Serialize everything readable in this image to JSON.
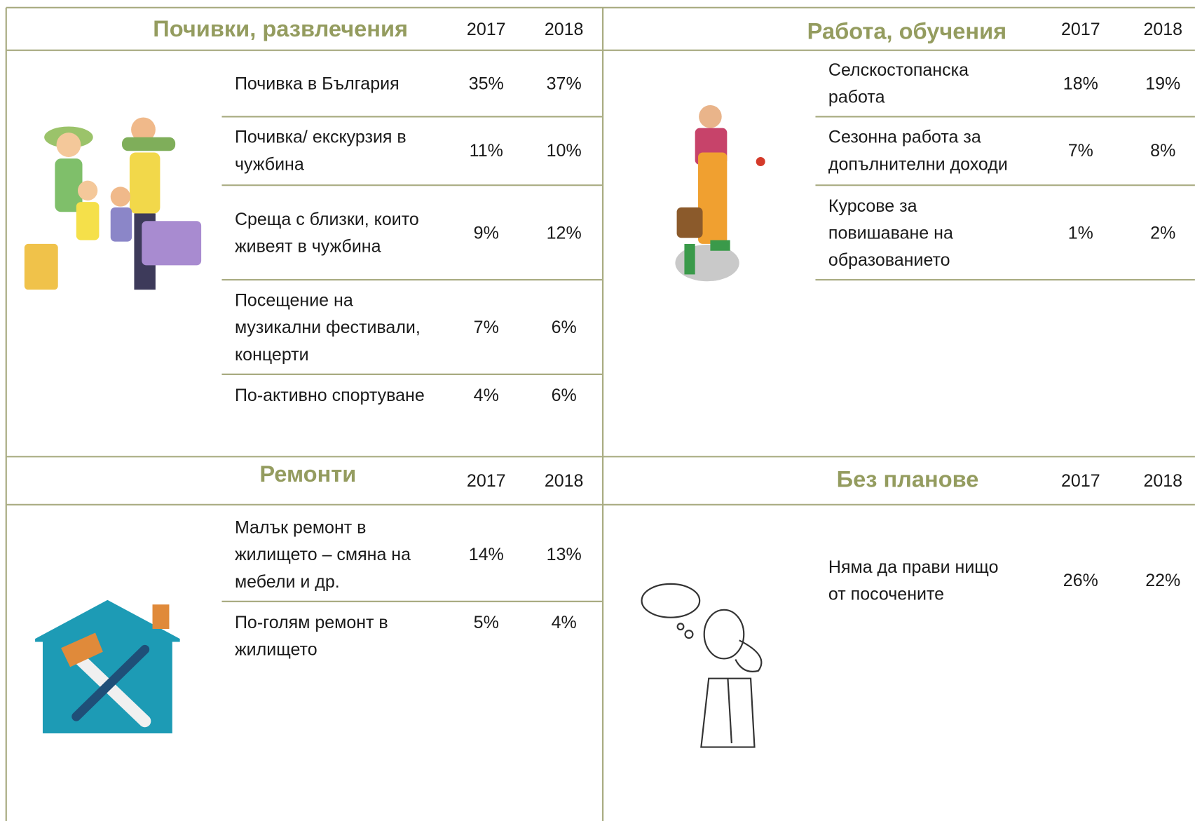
{
  "sections": [
    {
      "title": "Почивки, развлечения",
      "years": [
        "2017",
        "2018"
      ],
      "rows": [
        {
          "label": [
            "Почивка в България"
          ],
          "values": [
            "35%",
            "37%"
          ]
        },
        {
          "label": [
            "Почивка/ екскурзия в",
            "чужбина"
          ],
          "values": [
            "11%",
            "10%"
          ]
        },
        {
          "label": [
            "Среща с близки, които",
            "живеят в чужбина"
          ],
          "values": [
            "9%",
            "12%"
          ]
        },
        {
          "label": [
            "Посещение на",
            "музикални фестивали,",
            "концерти"
          ],
          "values": [
            "7%",
            "6%"
          ]
        },
        {
          "label": [
            "По-активно спортуване"
          ],
          "values": [
            "4%",
            "6%"
          ]
        }
      ]
    },
    {
      "title": "Работа, обучения",
      "years": [
        "2017",
        "2018"
      ],
      "rows": [
        {
          "label": [
            "Селскостопанска",
            "работа"
          ],
          "values": [
            "18%",
            "19%"
          ]
        },
        {
          "label": [
            "Сезонна работа за",
            "допълнителни доходи"
          ],
          "values": [
            "7%",
            "8%"
          ]
        },
        {
          "label": [
            "Курсове за",
            "повишаване на",
            "образованието"
          ],
          "values": [
            "1%",
            "2%"
          ]
        }
      ]
    },
    {
      "title": "Ремонти",
      "years": [
        "2017",
        "2018"
      ],
      "rows": [
        {
          "label": [
            "Малък ремонт в",
            "жилището – смяна на",
            "мебели и др."
          ],
          "values": [
            "14%",
            "13%"
          ]
        },
        {
          "label": [
            "По-голям ремонт в",
            "жилището"
          ],
          "values": [
            "5%",
            "4%"
          ]
        }
      ]
    },
    {
      "title": "Без планове",
      "years": [
        "2017",
        "2018"
      ],
      "rows": [
        {
          "label": [
            "Няма да прави нищо",
            "от посочените"
          ],
          "values": [
            "26%",
            "22%"
          ]
        }
      ]
    }
  ]
}
